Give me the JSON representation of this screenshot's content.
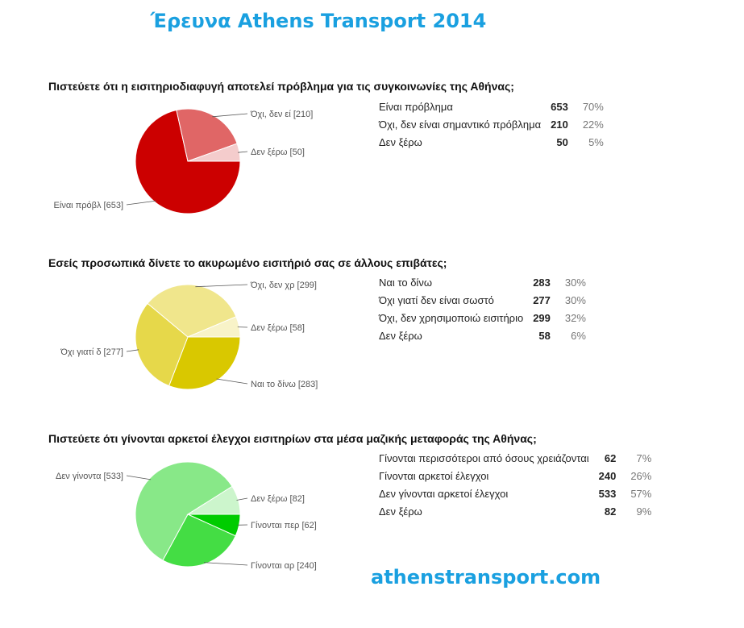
{
  "title": "Έρευνα Athens Transport 2014",
  "footer": "athenstransport.com",
  "chart_data": [
    {
      "type": "pie",
      "title": "Πιστεύετε ότι η εισιτηριοδιαφυγή αποτελεί πρόβλημα για τις συγκοινωνίες της Αθήνας;",
      "slices": [
        {
          "label": "Είναι πρόβλημα",
          "value": 653,
          "percent": "70%",
          "pie_label": "Είναι πρόβλ [653]",
          "color": "#cc0000"
        },
        {
          "label": "Όχι, δεν είναι σημαντικό πρόβλημα",
          "value": 210,
          "percent": "22%",
          "pie_label": "Όχι, δεν εί [210]",
          "color": "#e06666"
        },
        {
          "label": "Δεν ξέρω",
          "value": 50,
          "percent": "5%",
          "pie_label": "Δεν ξέρω [50]",
          "color": "#f4cccc"
        }
      ]
    },
    {
      "type": "pie",
      "title": "Εσείς προσωπικά δίνετε το ακυρωμένο εισιτήριό σας σε άλλους επιβάτες;",
      "slices": [
        {
          "label": "Ναι το δίνω",
          "value": 283,
          "percent": "30%",
          "pie_label": "Ναι το δίνω [283]",
          "color": "#d9c800"
        },
        {
          "label": "Όχι γιατί δεν είναι σωστό",
          "value": 277,
          "percent": "30%",
          "pie_label": "Όχι γιατί δ [277]",
          "color": "#e6d84a"
        },
        {
          "label": "Όχι, δεν χρησιμοποιώ εισιτήριο",
          "value": 299,
          "percent": "32%",
          "pie_label": "Όχι, δεν χρ [299]",
          "color": "#f0e68c"
        },
        {
          "label": "Δεν ξέρω",
          "value": 58,
          "percent": "6%",
          "pie_label": "Δεν ξέρω [58]",
          "color": "#f8f3c8"
        }
      ]
    },
    {
      "type": "pie",
      "title": "Πιστεύετε ότι γίνονται αρκετοί έλεγχοι εισιτηρίων στα μέσα μαζικής μεταφοράς της Αθήνας;",
      "slices": [
        {
          "label": "Γίνονται περισσότεροι από όσους χρειάζονται",
          "value": 62,
          "percent": "7%",
          "pie_label": "Γίνονται περ [62]",
          "color": "#00cc00"
        },
        {
          "label": "Γίνονται αρκετοί έλεγχοι",
          "value": 240,
          "percent": "26%",
          "pie_label": "Γίνονται αρ [240]",
          "color": "#44dd44"
        },
        {
          "label": "Δεν γίνονται αρκετοί έλεγχοι",
          "value": 533,
          "percent": "57%",
          "pie_label": "Δεν γίνοντα [533]",
          "color": "#88e888"
        },
        {
          "label": "Δεν ξέρω",
          "value": 82,
          "percent": "9%",
          "pie_label": "Δεν ξέρω [82]",
          "color": "#ccf5cc"
        }
      ]
    }
  ]
}
